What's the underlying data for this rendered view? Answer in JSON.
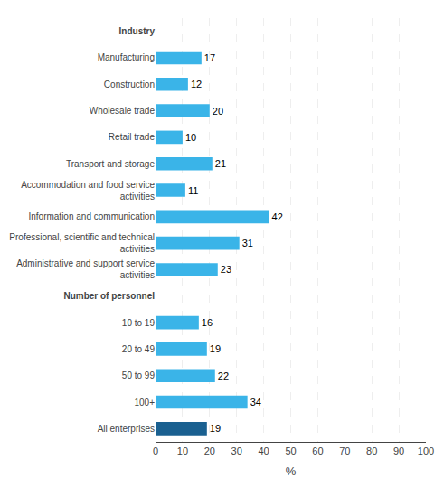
{
  "chart_data": {
    "type": "bar",
    "orientation": "horizontal",
    "categories": [
      "Industry",
      "Manufacturing",
      "Construction",
      "Wholesale trade",
      "Retail trade",
      "Transport and storage",
      "Accommodation and food service\nactivities",
      "Information and communication",
      "Professional, scientific and technical\nactivities",
      "Administrative and support service\nactivities",
      "Number of personnel",
      "10 to 19",
      "20 to 49",
      "50 to 99",
      "100+",
      "All enterprises"
    ],
    "values": [
      null,
      17,
      12,
      20,
      10,
      21,
      11,
      42,
      31,
      23,
      null,
      16,
      19,
      22,
      34,
      19
    ],
    "colors": [
      null,
      "#3ab4e8",
      "#3ab4e8",
      "#3ab4e8",
      "#3ab4e8",
      "#3ab4e8",
      "#3ab4e8",
      "#3ab4e8",
      "#3ab4e8",
      "#3ab4e8",
      null,
      "#3ab4e8",
      "#3ab4e8",
      "#3ab4e8",
      "#3ab4e8",
      "#1a6090"
    ],
    "xlabel": "%",
    "xlim": [
      0,
      100
    ],
    "xticks": [
      0,
      10,
      20,
      30,
      40,
      50,
      60,
      70,
      80,
      90,
      100
    ],
    "grid": true,
    "data_labels": true
  }
}
